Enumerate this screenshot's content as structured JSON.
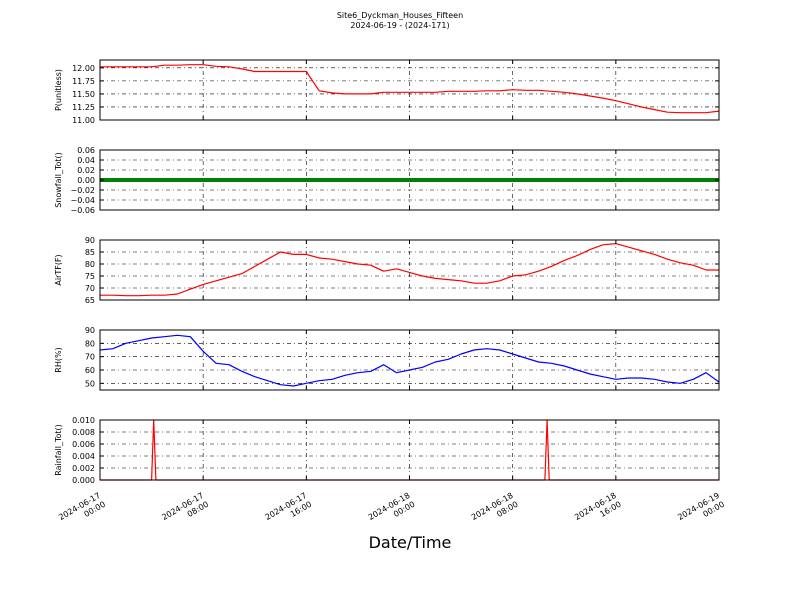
{
  "header": {
    "title": "Site6_Dyckman_Houses_Fifteen",
    "subtitle": "2024-06-19 - (2024-171)"
  },
  "xlabel": "Date/Time",
  "colors": {
    "pressure": "#ff0000",
    "snowfall": "#008000",
    "air_temp": "#ff0000",
    "rh": "#0000ff",
    "rainfall": "#ff0000"
  },
  "chart_data": [
    {
      "type": "line",
      "id": "pressure",
      "ylabel": "P(unitless)",
      "x": [
        "2024-06-17 00:00",
        "2024-06-17 01:00",
        "2024-06-17 02:00",
        "2024-06-17 03:00",
        "2024-06-17 04:00",
        "2024-06-17 05:00",
        "2024-06-17 06:00",
        "2024-06-17 07:00",
        "2024-06-17 08:00",
        "2024-06-17 09:00",
        "2024-06-17 10:00",
        "2024-06-17 11:00",
        "2024-06-17 12:00",
        "2024-06-17 13:00",
        "2024-06-17 14:00",
        "2024-06-17 15:00",
        "2024-06-17 16:00",
        "2024-06-17 17:00",
        "2024-06-17 18:00",
        "2024-06-17 19:00",
        "2024-06-17 20:00",
        "2024-06-17 21:00",
        "2024-06-17 22:00",
        "2024-06-17 23:00",
        "2024-06-18 00:00",
        "2024-06-18 01:00",
        "2024-06-18 02:00",
        "2024-06-18 03:00",
        "2024-06-18 04:00",
        "2024-06-18 05:00",
        "2024-06-18 06:00",
        "2024-06-18 07:00",
        "2024-06-18 08:00",
        "2024-06-18 09:00",
        "2024-06-18 10:00",
        "2024-06-18 11:00",
        "2024-06-18 12:00",
        "2024-06-18 13:00",
        "2024-06-18 14:00",
        "2024-06-18 15:00",
        "2024-06-18 16:00",
        "2024-06-18 17:00",
        "2024-06-18 18:00",
        "2024-06-18 19:00",
        "2024-06-18 20:00",
        "2024-06-18 21:00",
        "2024-06-18 22:00",
        "2024-06-18 23:00",
        "2024-06-19 00:00"
      ],
      "values": [
        12.02,
        12.02,
        12.02,
        12.02,
        12.02,
        12.05,
        12.05,
        12.06,
        12.06,
        12.03,
        12.02,
        11.98,
        11.93,
        11.93,
        11.93,
        11.93,
        11.93,
        11.56,
        11.52,
        11.5,
        11.5,
        11.5,
        11.53,
        11.53,
        11.53,
        11.53,
        11.53,
        11.55,
        11.55,
        11.55,
        11.56,
        11.56,
        11.58,
        11.57,
        11.57,
        11.55,
        11.53,
        11.5,
        11.46,
        11.42,
        11.37,
        11.31,
        11.25,
        11.2,
        11.15,
        11.14,
        11.14,
        11.14,
        11.17
      ],
      "ylim": [
        11.0,
        12.15
      ],
      "yticks": [
        "11.00",
        "11.25",
        "11.50",
        "11.75",
        "12.00"
      ],
      "ytick_values": [
        11.0,
        11.25,
        11.5,
        11.75,
        12.0
      ],
      "grid": true
    },
    {
      "type": "line",
      "id": "snowfall",
      "ylabel": "Snowfall_Tot()",
      "x": [
        "2024-06-17 00:00",
        "2024-06-19 00:00"
      ],
      "values": [
        0.0,
        0.0
      ],
      "ylim": [
        -0.06,
        0.06
      ],
      "yticks": [
        "−0.06",
        "−0.04",
        "−0.02",
        "0.00",
        "0.02",
        "0.04",
        "0.06"
      ],
      "ytick_values": [
        -0.06,
        -0.04,
        -0.02,
        0.0,
        0.02,
        0.04,
        0.06
      ],
      "grid": true
    },
    {
      "type": "line",
      "id": "air_temp",
      "ylabel": "AirTF(F)",
      "x": [
        "2024-06-17 00:00",
        "2024-06-17 01:00",
        "2024-06-17 02:00",
        "2024-06-17 03:00",
        "2024-06-17 04:00",
        "2024-06-17 05:00",
        "2024-06-17 06:00",
        "2024-06-17 07:00",
        "2024-06-17 08:00",
        "2024-06-17 09:00",
        "2024-06-17 10:00",
        "2024-06-17 11:00",
        "2024-06-17 12:00",
        "2024-06-17 13:00",
        "2024-06-17 14:00",
        "2024-06-17 15:00",
        "2024-06-17 16:00",
        "2024-06-17 17:00",
        "2024-06-17 18:00",
        "2024-06-17 19:00",
        "2024-06-17 20:00",
        "2024-06-17 21:00",
        "2024-06-17 22:00",
        "2024-06-17 23:00",
        "2024-06-18 00:00",
        "2024-06-18 01:00",
        "2024-06-18 02:00",
        "2024-06-18 03:00",
        "2024-06-18 04:00",
        "2024-06-18 05:00",
        "2024-06-18 06:00",
        "2024-06-18 07:00",
        "2024-06-18 08:00",
        "2024-06-18 09:00",
        "2024-06-18 10:00",
        "2024-06-18 11:00",
        "2024-06-18 12:00",
        "2024-06-18 13:00",
        "2024-06-18 14:00",
        "2024-06-18 15:00",
        "2024-06-18 16:00",
        "2024-06-18 17:00",
        "2024-06-18 18:00",
        "2024-06-18 19:00",
        "2024-06-18 20:00",
        "2024-06-18 21:00",
        "2024-06-18 22:00",
        "2024-06-18 23:00",
        "2024-06-19 00:00"
      ],
      "values": [
        67.0,
        67.0,
        66.8,
        66.8,
        67.0,
        67.0,
        67.5,
        69.5,
        71.5,
        73.0,
        74.5,
        76.0,
        79.0,
        82.0,
        85.0,
        84.0,
        84.0,
        82.5,
        82.0,
        81.0,
        80.0,
        79.5,
        77.0,
        78.0,
        76.5,
        75.0,
        74.0,
        73.5,
        73.0,
        72.0,
        72.0,
        73.0,
        75.0,
        75.5,
        77.0,
        79.0,
        81.5,
        83.5,
        86.0,
        88.0,
        88.5,
        87.0,
        85.5,
        84.0,
        82.0,
        80.5,
        79.5,
        77.5,
        77.5
      ],
      "ylim": [
        65,
        90
      ],
      "yticks": [
        "65",
        "70",
        "75",
        "80",
        "85",
        "90"
      ],
      "ytick_values": [
        65,
        70,
        75,
        80,
        85,
        90
      ],
      "grid": true
    },
    {
      "type": "line",
      "id": "rh",
      "ylabel": "RH(%)",
      "x": [
        "2024-06-17 00:00",
        "2024-06-17 01:00",
        "2024-06-17 02:00",
        "2024-06-17 03:00",
        "2024-06-17 04:00",
        "2024-06-17 05:00",
        "2024-06-17 06:00",
        "2024-06-17 07:00",
        "2024-06-17 08:00",
        "2024-06-17 09:00",
        "2024-06-17 10:00",
        "2024-06-17 11:00",
        "2024-06-17 12:00",
        "2024-06-17 13:00",
        "2024-06-17 14:00",
        "2024-06-17 15:00",
        "2024-06-17 16:00",
        "2024-06-17 17:00",
        "2024-06-17 18:00",
        "2024-06-17 19:00",
        "2024-06-17 20:00",
        "2024-06-17 21:00",
        "2024-06-17 22:00",
        "2024-06-17 23:00",
        "2024-06-18 00:00",
        "2024-06-18 01:00",
        "2024-06-18 02:00",
        "2024-06-18 03:00",
        "2024-06-18 04:00",
        "2024-06-18 05:00",
        "2024-06-18 06:00",
        "2024-06-18 07:00",
        "2024-06-18 08:00",
        "2024-06-18 09:00",
        "2024-06-18 10:00",
        "2024-06-18 11:00",
        "2024-06-18 12:00",
        "2024-06-18 13:00",
        "2024-06-18 14:00",
        "2024-06-18 15:00",
        "2024-06-18 16:00",
        "2024-06-18 17:00",
        "2024-06-18 18:00",
        "2024-06-18 19:00",
        "2024-06-18 20:00",
        "2024-06-18 21:00",
        "2024-06-18 22:00",
        "2024-06-18 23:00",
        "2024-06-19 00:00"
      ],
      "values": [
        75,
        76,
        80,
        82,
        84,
        85,
        86,
        85,
        74,
        65,
        64,
        59,
        55,
        52,
        49,
        48,
        50,
        52,
        53,
        56,
        58,
        59,
        64,
        58,
        60,
        62,
        66,
        68,
        72,
        75,
        76,
        75,
        72,
        69,
        66,
        65,
        63,
        60,
        57,
        55,
        53,
        54,
        54,
        53,
        51,
        50,
        53,
        58,
        51
      ],
      "ylim": [
        45,
        90
      ],
      "yticks": [
        "50",
        "60",
        "70",
        "80",
        "90"
      ],
      "ytick_values": [
        50,
        60,
        70,
        80,
        90
      ],
      "grid": true
    },
    {
      "type": "line",
      "id": "rainfall",
      "ylabel": "Rainfall_Tot()",
      "x": [
        "2024-06-17 00:00",
        "2024-06-17 04:00",
        "2024-06-17 04:10",
        "2024-06-17 04:20",
        "2024-06-18 10:30",
        "2024-06-18 10:40",
        "2024-06-18 10:50",
        "2024-06-19 00:00"
      ],
      "values": [
        0.0,
        0.0,
        0.01,
        0.0,
        0.0,
        0.01,
        0.0,
        0.0
      ],
      "ylim": [
        0.0,
        0.01
      ],
      "yticks": [
        "0.000",
        "0.002",
        "0.004",
        "0.006",
        "0.008",
        "0.010"
      ],
      "ytick_values": [
        0.0,
        0.002,
        0.004,
        0.006,
        0.008,
        0.01
      ],
      "grid": true
    }
  ],
  "xaxis": {
    "range": [
      "2024-06-17 00:00",
      "2024-06-19 00:00"
    ],
    "ticks": [
      {
        "value": "2024-06-17 00:00",
        "line1": "2024-06-17",
        "line2": "00:00"
      },
      {
        "value": "2024-06-17 08:00",
        "line1": "2024-06-17",
        "line2": "08:00"
      },
      {
        "value": "2024-06-17 16:00",
        "line1": "2024-06-17",
        "line2": "16:00"
      },
      {
        "value": "2024-06-18 00:00",
        "line1": "2024-06-18",
        "line2": "00:00"
      },
      {
        "value": "2024-06-18 08:00",
        "line1": "2024-06-18",
        "line2": "08:00"
      },
      {
        "value": "2024-06-18 16:00",
        "line1": "2024-06-18",
        "line2": "16:00"
      },
      {
        "value": "2024-06-19 00:00",
        "line1": "2024-06-19",
        "line2": "00:00"
      }
    ]
  }
}
